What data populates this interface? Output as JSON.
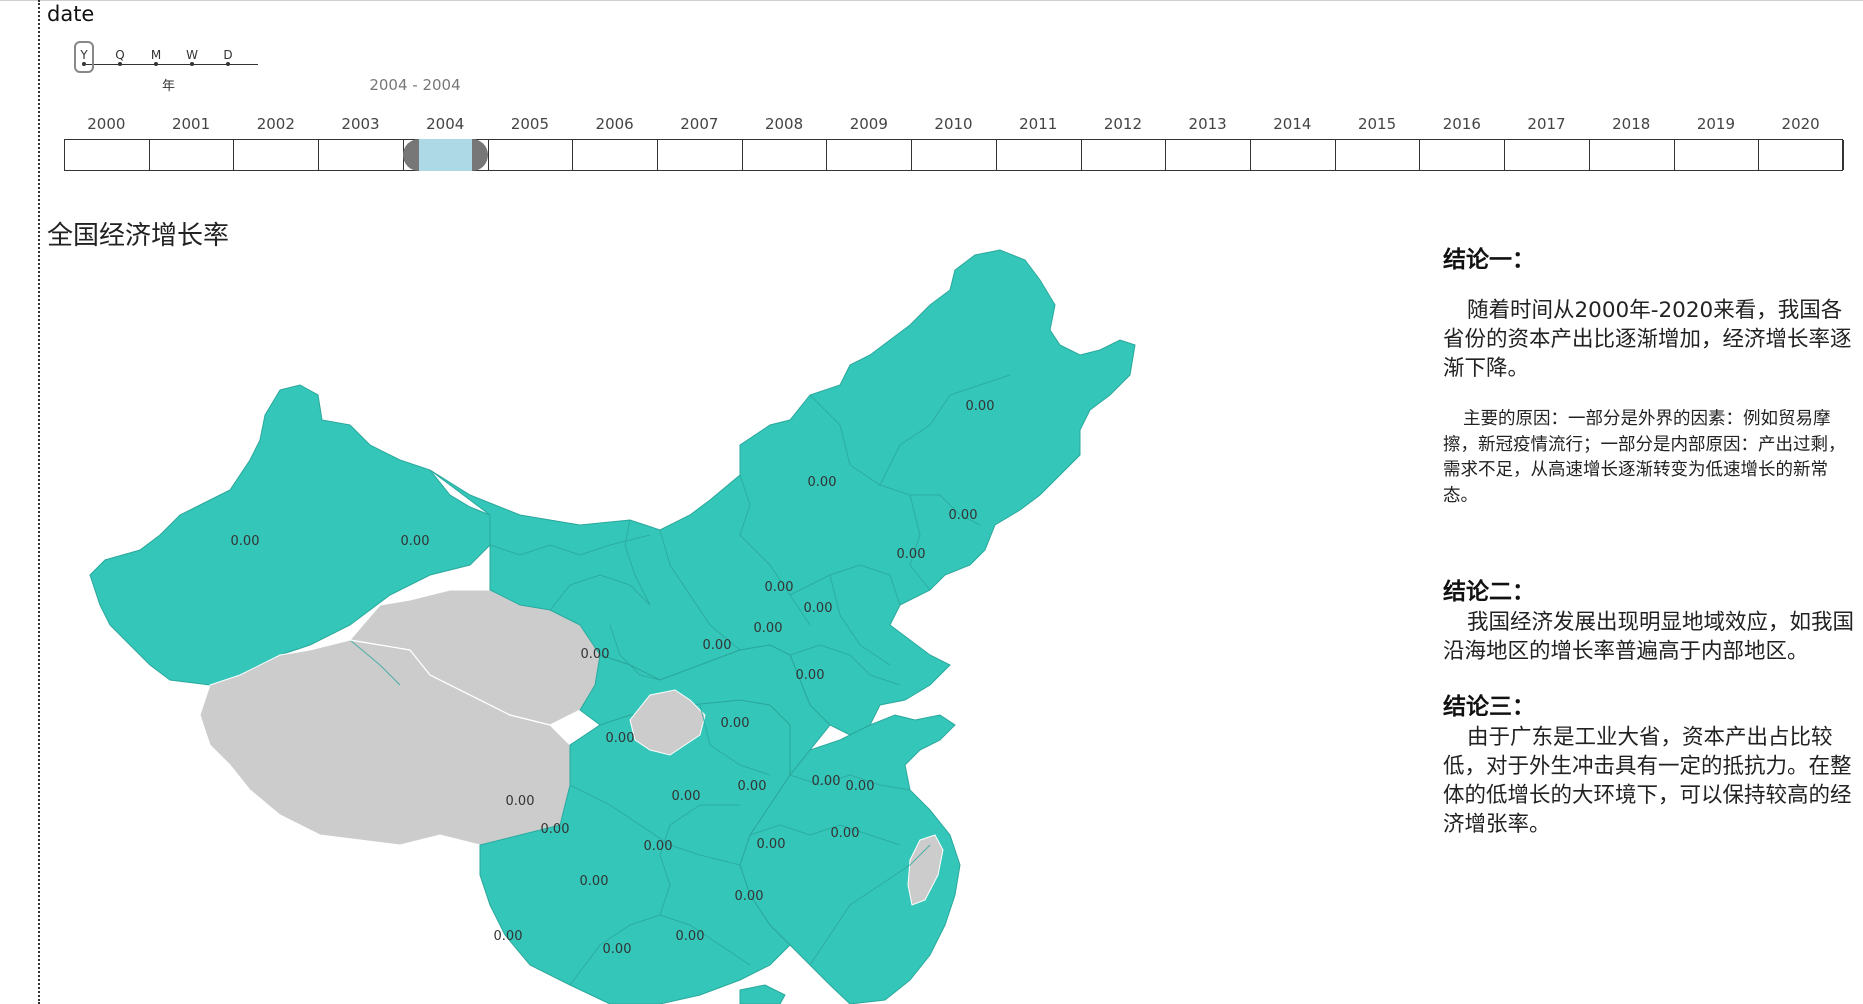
{
  "filter": {
    "title": "date",
    "granularity": {
      "options": [
        "Y",
        "Q",
        "M",
        "W",
        "D"
      ],
      "selected": "Y",
      "caption": "年"
    },
    "range_label": "2004 - 2004",
    "timeline": {
      "years": [
        "2000",
        "2001",
        "2002",
        "2003",
        "2004",
        "2005",
        "2006",
        "2007",
        "2008",
        "2009",
        "2010",
        "2011",
        "2012",
        "2013",
        "2014",
        "2015",
        "2016",
        "2017",
        "2018",
        "2019",
        "2020"
      ],
      "selected_start": "2004",
      "selected_end": "2004"
    }
  },
  "map": {
    "title": "全国经济增长率",
    "fill_color": "#34c6b9",
    "nodata_color": "#cccccc",
    "value_labels": [
      "0.00",
      "0.00",
      "0.00",
      "0.00",
      "0.00",
      "0.00",
      "0.00",
      "0.00",
      "0.00",
      "0.00",
      "0.00",
      "0.00",
      "0.00",
      "0.00",
      "0.00",
      "0.00",
      "0.00",
      "0.00",
      "0.00",
      "0.00",
      "0.00",
      "0.00",
      "0.00",
      "0.00",
      "0.00",
      "0.00",
      "0.00",
      "0.00"
    ]
  },
  "conclusions": [
    {
      "title": "结论一：",
      "paragraphs": [
        "随着时间从2000年-2020来看，我国各省份的资本产出比逐渐增加，经济增长率逐渐下降。"
      ],
      "note": "主要的原因：一部分是外界的因素：例如贸易摩擦，新冠疫情流行；一部分是内部原因：产出过剩，需求不足，从高速增长逐渐转变为低速增长的新常态。"
    },
    {
      "title": "结论二：",
      "paragraphs": [
        "我国经济发展出现明显地域效应，如我国沿海地区的增长率普遍高于内部地区。"
      ]
    },
    {
      "title": "结论三：",
      "paragraphs": [
        "由于广东是工业大省，资本产出占比较低，对于外生冲击具有一定的抵抗力。在整体的低增长的大环境下，可以保持较高的经济增张率。"
      ]
    }
  ]
}
